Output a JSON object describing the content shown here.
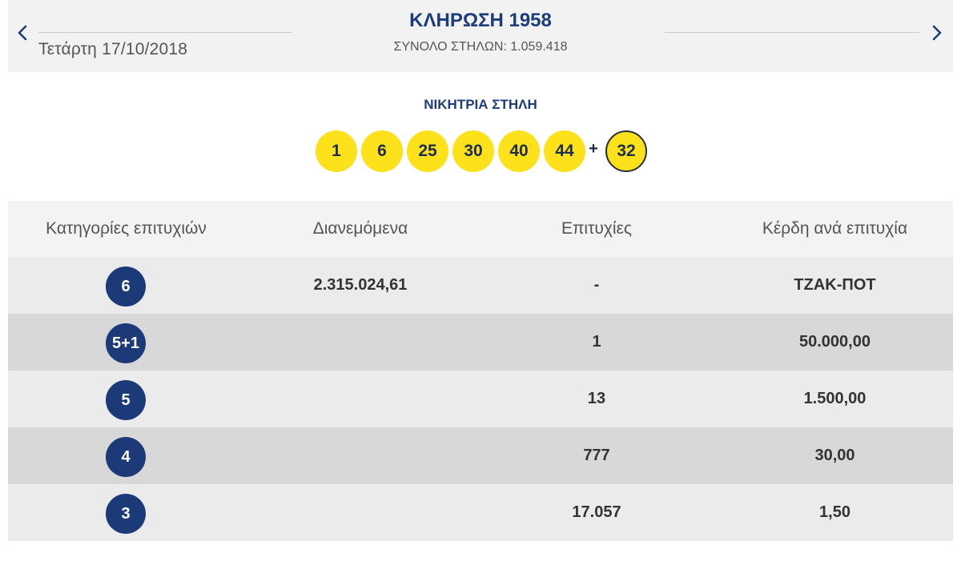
{
  "header": {
    "date": "Τετάρτη 17/10/2018",
    "title": "ΚΛΗΡΩΣΗ 1958",
    "total_columns": "ΣΥΝΟΛΟ ΣΤΗΛΩΝ: 1.059.418",
    "prev_icon": "chevron-left-icon",
    "next_icon": "chevron-right-icon"
  },
  "winning": {
    "label": "ΝΙΚΗΤΡΙΑ ΣΤΗΛΗ",
    "numbers": [
      "1",
      "6",
      "25",
      "30",
      "40",
      "44"
    ],
    "plus": "+",
    "joker": "32"
  },
  "table": {
    "headers": [
      "Κατηγορίες επιτυχιών",
      "Διανεμόμενα",
      "Επιτυχίες",
      "Κέρδη ανά επιτυχία"
    ],
    "rows": [
      {
        "category": "6",
        "distributed": "2.315.024,61",
        "winners": "-",
        "prize": "ΤΖΑΚ-ΠΟΤ"
      },
      {
        "category": "5+1",
        "distributed": "",
        "winners": "1",
        "prize": "50.000,00"
      },
      {
        "category": "5",
        "distributed": "",
        "winners": "13",
        "prize": "1.500,00"
      },
      {
        "category": "4",
        "distributed": "",
        "winners": "777",
        "prize": "30,00"
      },
      {
        "category": "3",
        "distributed": "",
        "winners": "17.057",
        "prize": "1,50"
      }
    ]
  },
  "colors": {
    "navy": "#1c3a78",
    "ball_yellow": "#fde11b",
    "header_bg": "#f2f2f2"
  }
}
